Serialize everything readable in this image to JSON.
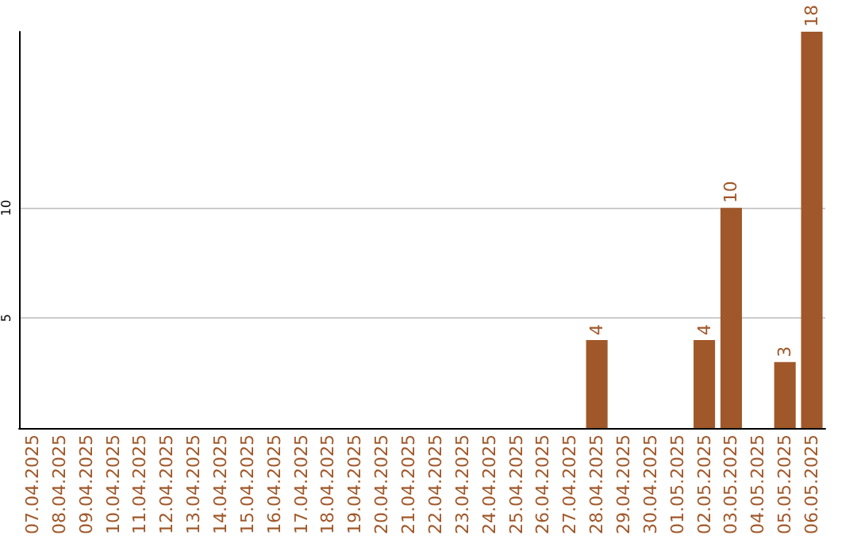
{
  "chart_data": {
    "type": "bar",
    "categories": [
      "07.04.2025",
      "08.04.2025",
      "09.04.2025",
      "10.04.2025",
      "11.04.2025",
      "12.04.2025",
      "13.04.2025",
      "14.04.2025",
      "15.04.2025",
      "16.04.2025",
      "17.04.2025",
      "18.04.2025",
      "19.04.2025",
      "20.04.2025",
      "21.04.2025",
      "22.04.2025",
      "23.04.2025",
      "24.04.2025",
      "25.04.2025",
      "26.04.2025",
      "27.04.2025",
      "28.04.2025",
      "29.04.2025",
      "30.04.2025",
      "01.05.2025",
      "02.05.2025",
      "03.05.2025",
      "04.05.2025",
      "05.05.2025",
      "06.05.2025"
    ],
    "values": [
      0,
      0,
      0,
      0,
      0,
      0,
      0,
      0,
      0,
      0,
      0,
      0,
      0,
      0,
      0,
      0,
      0,
      0,
      0,
      0,
      0,
      4,
      0,
      0,
      0,
      4,
      10,
      0,
      3,
      18
    ],
    "value_labels": [
      null,
      null,
      null,
      null,
      null,
      null,
      null,
      null,
      null,
      null,
      null,
      null,
      null,
      null,
      null,
      null,
      null,
      null,
      null,
      null,
      null,
      "4",
      null,
      null,
      null,
      "4",
      "10",
      null,
      "3",
      "18"
    ],
    "color": "#a0582a",
    "ylim": [
      0,
      18
    ],
    "yticks": [
      5,
      10
    ],
    "grid": "y"
  }
}
